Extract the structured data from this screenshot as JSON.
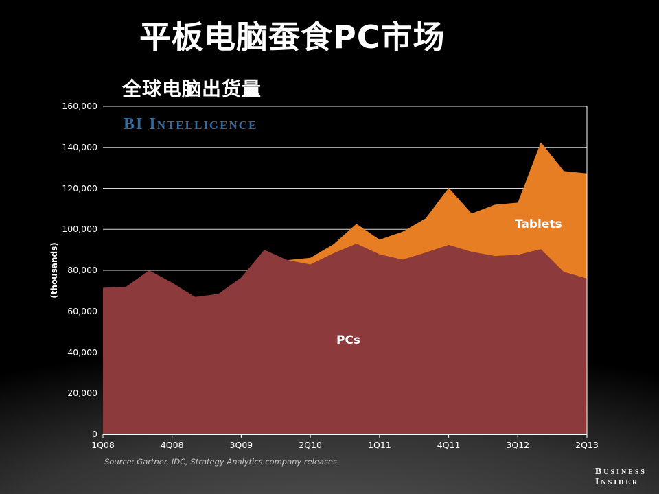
{
  "page": {
    "title": "平板电脑蚕食PC市场",
    "subtitle": "全球电脑出货量",
    "watermark": "BI Intelligence",
    "watermark_color": "#336A9E",
    "source": "Source: Gartner, IDC, Strategy Analytics company releases",
    "footer_logo": {
      "line1": "Business",
      "line2": "Insider"
    }
  },
  "chart_data": {
    "type": "area",
    "stacked": true,
    "title": "平板电脑蚕食PC市场",
    "subtitle": "全球电脑出货量",
    "xlabel": "",
    "ylabel": "(thousands)",
    "ylim": [
      0,
      160000
    ],
    "y_tick_step": 20000,
    "y_tick_labels": [
      "0",
      "20,000",
      "40,000",
      "60,000",
      "80,000",
      "100,000",
      "120,000",
      "140,000",
      "160,000"
    ],
    "grid": true,
    "legend_position": "in-plot-labels",
    "x": [
      "1Q08",
      "2Q08",
      "3Q08",
      "4Q08",
      "1Q09",
      "2Q09",
      "3Q09",
      "4Q09",
      "1Q10",
      "2Q10",
      "3Q10",
      "4Q10",
      "1Q11",
      "2Q11",
      "3Q11",
      "4Q11",
      "1Q12",
      "2Q12",
      "3Q12",
      "4Q12",
      "1Q13",
      "2Q13"
    ],
    "x_tick_labels": [
      "1Q08",
      "4Q08",
      "3Q09",
      "2Q10",
      "1Q11",
      "4Q11",
      "3Q12",
      "2Q13"
    ],
    "x_tick_indices": [
      0,
      3,
      6,
      9,
      12,
      15,
      18,
      21
    ],
    "series": [
      {
        "name": "PCs",
        "color": "#8D3A3D",
        "values": [
          71500,
          72000,
          80000,
          74000,
          67000,
          68500,
          76500,
          90000,
          85000,
          82800,
          88300,
          93000,
          87800,
          85200,
          88600,
          92400,
          89000,
          87000,
          87500,
          90300,
          79200,
          76000
        ]
      },
      {
        "name": "Tablets",
        "color": "#E87E23",
        "values": [
          0,
          0,
          0,
          0,
          0,
          0,
          0,
          0,
          0,
          3300,
          4400,
          9700,
          7200,
          13600,
          16700,
          27800,
          18700,
          25000,
          25500,
          52200,
          49200,
          51300
        ]
      }
    ]
  }
}
